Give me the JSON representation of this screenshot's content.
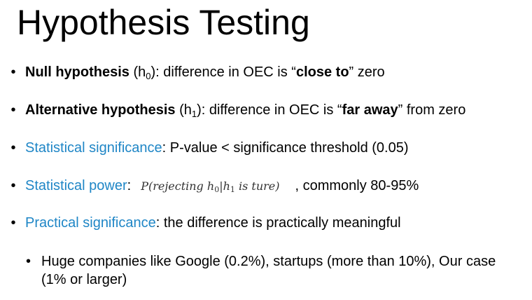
{
  "slide": {
    "title": "Hypothesis Testing"
  },
  "bullet_char": "•",
  "items": [
    {
      "term": "Null hypothesis",
      "paren_open": " (h",
      "sub": "0",
      "paren_close": "): difference in OEC is “",
      "emph": "close to",
      "tail": "” zero"
    },
    {
      "term": "Alternative hypothesis",
      "paren_open": " (h",
      "sub": "1",
      "paren_close": "): difference in OEC is “",
      "emph": "far away",
      "tail": "” from zero"
    },
    {
      "term": "Statistical significance",
      "text": ": P-value < significance threshold (0.05)"
    },
    {
      "term": "Statistical power",
      "colon": ":",
      "formula_pre": "P(rejecting h",
      "formula_sub0": "0",
      "formula_mid": "|h",
      "formula_sub1": "1",
      "formula_post": " is ture)",
      "text": ", commonly 80-95%"
    },
    {
      "term": "Practical significance",
      "text": ": the difference is practically meaningful"
    }
  ],
  "subitem": {
    "text": "Huge companies like Google (0.2%), startups (more than 10%), Our case (1% or larger)"
  },
  "colors": {
    "accent_blue": "#1f86c6",
    "text": "#000000"
  }
}
